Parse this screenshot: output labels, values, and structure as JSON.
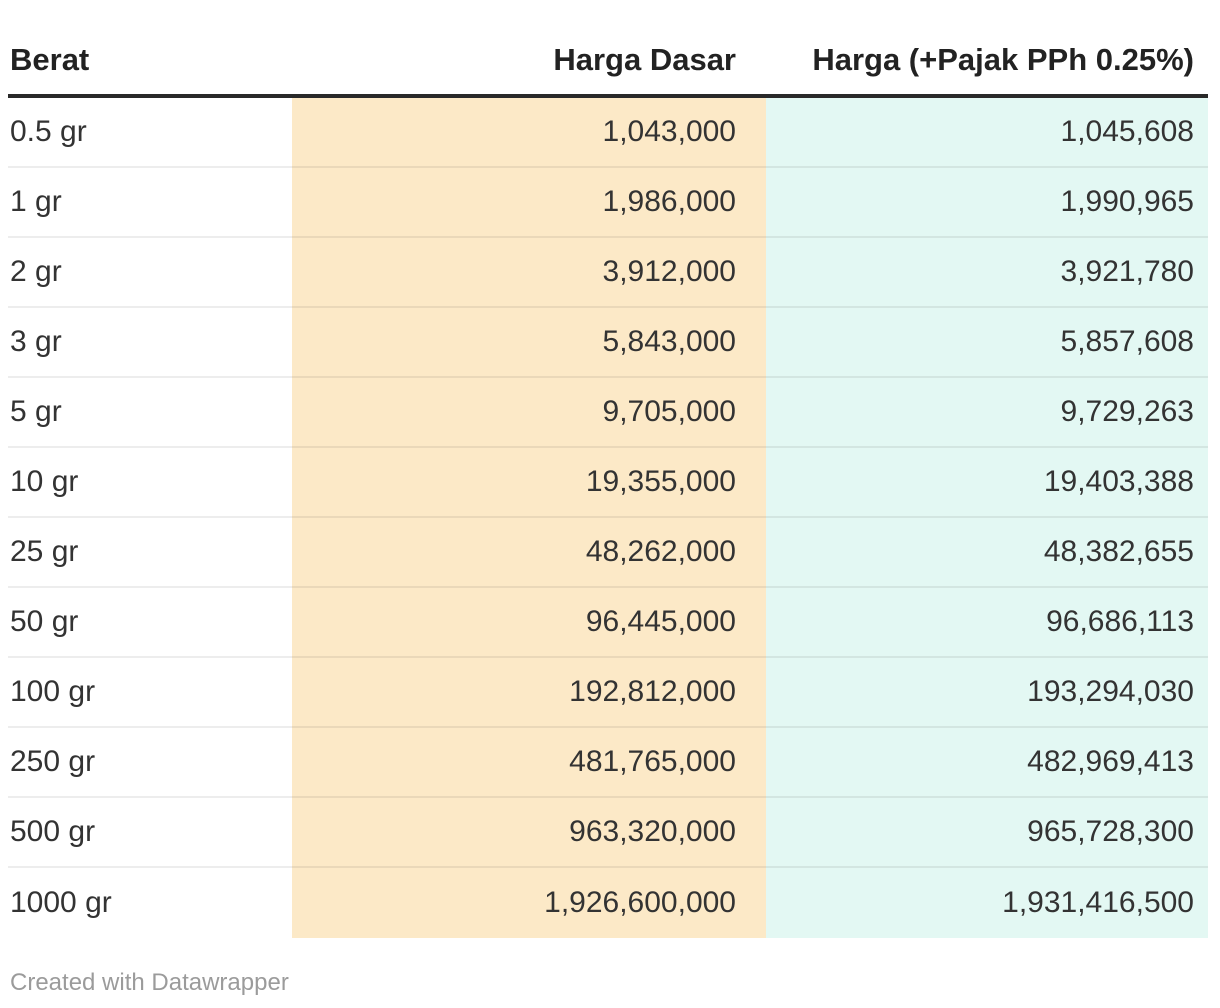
{
  "header": {
    "col_berat": "Berat",
    "col_harga_dasar": "Harga Dasar",
    "col_harga_pajak": "Harga (+Pajak PPh 0.25%)"
  },
  "rows": [
    {
      "berat": "0.5 gr",
      "harga_dasar": "1,043,000",
      "harga_pajak": "1,045,608"
    },
    {
      "berat": "1 gr",
      "harga_dasar": "1,986,000",
      "harga_pajak": "1,990,965"
    },
    {
      "berat": "2 gr",
      "harga_dasar": "3,912,000",
      "harga_pajak": "3,921,780"
    },
    {
      "berat": "3 gr",
      "harga_dasar": "5,843,000",
      "harga_pajak": "5,857,608"
    },
    {
      "berat": "5 gr",
      "harga_dasar": "9,705,000",
      "harga_pajak": "9,729,263"
    },
    {
      "berat": "10 gr",
      "harga_dasar": "19,355,000",
      "harga_pajak": "19,403,388"
    },
    {
      "berat": "25 gr",
      "harga_dasar": "48,262,000",
      "harga_pajak": "48,382,655"
    },
    {
      "berat": "50 gr",
      "harga_dasar": "96,445,000",
      "harga_pajak": "96,686,113"
    },
    {
      "berat": "100 gr",
      "harga_dasar": "192,812,000",
      "harga_pajak": "193,294,030"
    },
    {
      "berat": "250 gr",
      "harga_dasar": "481,765,000",
      "harga_pajak": "482,969,413"
    },
    {
      "berat": "500 gr",
      "harga_dasar": "963,320,000",
      "harga_pajak": "965,728,300"
    },
    {
      "berat": "1000 gr",
      "harga_dasar": "1,926,600,000",
      "harga_pajak": "1,931,416,500"
    }
  ],
  "footer": {
    "prefix": "Created with ",
    "link_label": "Datawrapper"
  },
  "colors": {
    "harga_dasar_bg": "#FCE9C7",
    "harga_pajak_bg": "#E3F8F3",
    "header_rule": "#292929"
  },
  "chart_data": {
    "type": "table",
    "columns": [
      "Berat",
      "Harga Dasar",
      "Harga (+Pajak PPh 0.25%)"
    ],
    "rows": [
      [
        "0.5 gr",
        1043000,
        1045608
      ],
      [
        "1 gr",
        1986000,
        1990965
      ],
      [
        "2 gr",
        3912000,
        3921780
      ],
      [
        "3 gr",
        5843000,
        5857608
      ],
      [
        "5 gr",
        9705000,
        9729263
      ],
      [
        "10 gr",
        19355000,
        19403388
      ],
      [
        "25 gr",
        48262000,
        48382655
      ],
      [
        "50 gr",
        96445000,
        96686113
      ],
      [
        "100 gr",
        192812000,
        193294030
      ],
      [
        "250 gr",
        481765000,
        482969413
      ],
      [
        "500 gr",
        963320000,
        965728300
      ],
      [
        "1000 gr",
        1926600000,
        1931416500
      ]
    ],
    "layout": {
      "column_alignment": [
        "left",
        "right",
        "right"
      ],
      "highlighted_columns": {
        "Harga Dasar": "#FCE9C7",
        "Harga (+Pajak PPh 0.25%)": "#E3F8F3"
      },
      "attribution": "Created with Datawrapper"
    }
  }
}
